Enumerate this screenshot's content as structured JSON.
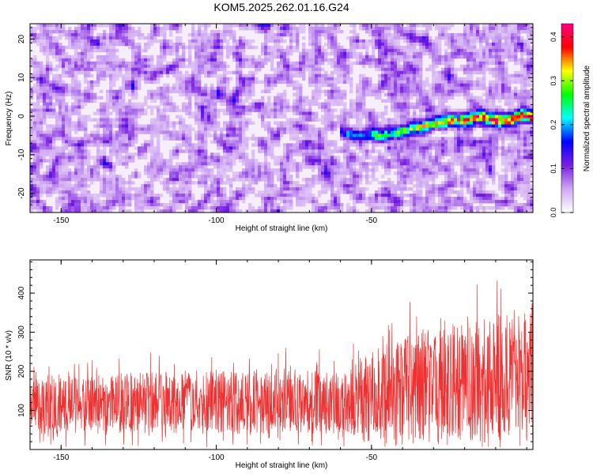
{
  "title": "KOM5.2025.262.01.16.G24",
  "chart_data": [
    {
      "type": "heatmap",
      "xlabel": "Height of straight line (km)",
      "ylabel": "Frequency (Hz)",
      "xlim": [
        -160,
        2
      ],
      "ylim": [
        -25,
        24
      ],
      "x_ticks": [
        -150,
        -100,
        -50
      ],
      "y_ticks": [
        -20,
        -10,
        0,
        10,
        20
      ],
      "colorbar": {
        "label": "Normalized spectral amplitude",
        "range": [
          0.0,
          0.43
        ],
        "ticks": [
          0.0,
          0.1,
          0.2,
          0.3,
          0.4
        ],
        "colors": [
          "#ffffff",
          "#cfa8f2",
          "#7a1fe0",
          "#0000ff",
          "#00ffff",
          "#00ff00",
          "#ffff00",
          "#ff0000",
          "#ff0080"
        ]
      },
      "ridge": {
        "x": [
          -60,
          -55,
          -50,
          -45,
          -40,
          -35,
          -30,
          -25,
          -20,
          -15,
          -10,
          -5,
          -2
        ],
        "y": [
          -4,
          -5,
          -5,
          -5,
          -4,
          -3,
          -2,
          -1,
          -1,
          0,
          -1,
          -1,
          0
        ]
      }
    },
    {
      "type": "line",
      "xlabel": "Height of straight line (km)",
      "ylabel": "SNR (10 * v/v)",
      "xlim": [
        -160,
        2
      ],
      "ylim": [
        0,
        485
      ],
      "x_ticks": [
        -150,
        -100,
        -50
      ],
      "y_ticks": [
        100,
        200,
        300,
        400
      ],
      "color": "#f03030",
      "envelope": {
        "x": [
          -160,
          -140,
          -120,
          -100,
          -80,
          -60,
          -50,
          -40,
          -30,
          -20,
          -10,
          2
        ],
        "mean": [
          110,
          115,
          120,
          120,
          125,
          120,
          140,
          160,
          170,
          175,
          185,
          190
        ],
        "amplitude": [
          90,
          95,
          100,
          100,
          105,
          100,
          140,
          170,
          180,
          190,
          200,
          210
        ]
      }
    }
  ]
}
